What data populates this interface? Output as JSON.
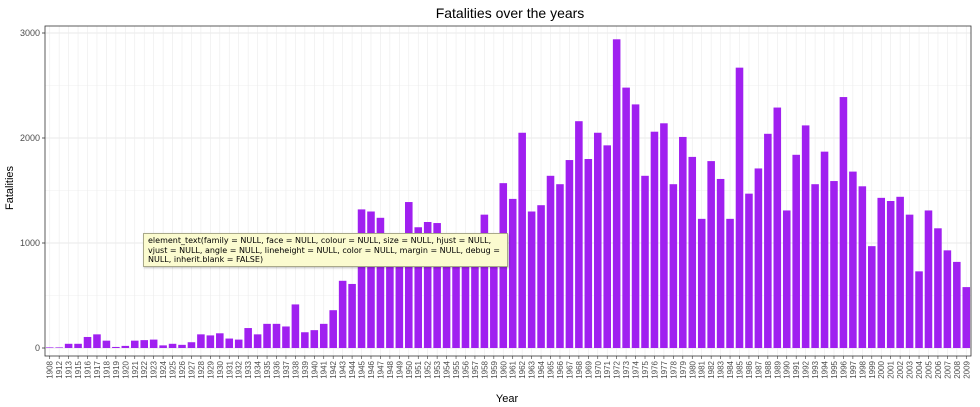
{
  "chart_data": {
    "type": "bar",
    "title": "Fatalities over the years",
    "xlabel": "Year",
    "ylabel": "Fatalities",
    "ylim": [
      0,
      3000
    ],
    "yticks": [
      0,
      1000,
      2000,
      3000
    ],
    "grid": true,
    "bar_color": "#a020f0",
    "categories": [
      "1908",
      "1912",
      "1913",
      "1915",
      "1916",
      "1917",
      "1918",
      "1919",
      "1920",
      "1921",
      "1922",
      "1923",
      "1924",
      "1925",
      "1926",
      "1927",
      "1928",
      "1929",
      "1930",
      "1931",
      "1932",
      "1933",
      "1934",
      "1935",
      "1936",
      "1937",
      "1938",
      "1939",
      "1940",
      "1941",
      "1942",
      "1943",
      "1944",
      "1945",
      "1946",
      "1947",
      "1948",
      "1949",
      "1950",
      "1951",
      "1952",
      "1953",
      "1954",
      "1955",
      "1956",
      "1957",
      "1958",
      "1959",
      "1960",
      "1961",
      "1962",
      "1963",
      "1964",
      "1965",
      "1966",
      "1967",
      "1968",
      "1969",
      "1970",
      "1971",
      "1972",
      "1973",
      "1974",
      "1975",
      "1976",
      "1977",
      "1978",
      "1979",
      "1980",
      "1981",
      "1982",
      "1983",
      "1984",
      "1985",
      "1986",
      "1987",
      "1988",
      "1989",
      "1990",
      "1991",
      "1992",
      "1993",
      "1994",
      "1995",
      "1996",
      "1997",
      "1998",
      "1999",
      "2000",
      "2001",
      "2002",
      "2003",
      "2004",
      "2005",
      "2006",
      "2007",
      "2008",
      "2009"
    ],
    "values": [
      1,
      5,
      40,
      40,
      105,
      130,
      70,
      10,
      20,
      70,
      75,
      80,
      25,
      40,
      30,
      55,
      130,
      120,
      140,
      90,
      80,
      190,
      130,
      230,
      230,
      205,
      415,
      150,
      170,
      230,
      360,
      640,
      610,
      1320,
      1300,
      1240,
      990,
      1030,
      1390,
      1150,
      1200,
      1190,
      1040,
      1000,
      1050,
      1020,
      1270,
      1060,
      1570,
      1420,
      2050,
      1300,
      1360,
      1640,
      1560,
      1790,
      2160,
      1800,
      2050,
      1930,
      2940,
      2480,
      2320,
      1640,
      2060,
      2140,
      1560,
      2010,
      1820,
      1230,
      1780,
      1610,
      1230,
      2670,
      1470,
      1710,
      2040,
      2290,
      1310,
      1840,
      2120,
      1560,
      1870,
      1590,
      2390,
      1680,
      1540,
      970,
      1430,
      1400,
      1440,
      1270,
      730,
      1310,
      1140,
      930,
      820,
      580
    ]
  },
  "tooltip": {
    "text": "element_text(family = NULL, face = NULL, colour = NULL, size = NULL, hjust = NULL, vjust = NULL, angle = NULL, lineheight = NULL, color = NULL, margin = NULL, debug = NULL, inherit.blank = FALSE)"
  }
}
